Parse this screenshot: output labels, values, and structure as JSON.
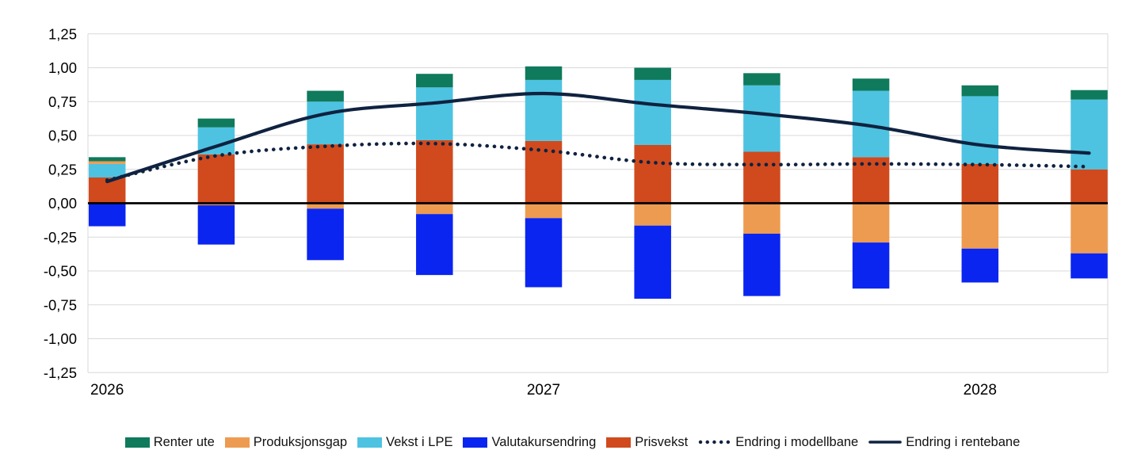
{
  "chart_data": {
    "type": "bar",
    "subtype": "stacked-bars-with-lines",
    "title": "",
    "num_categories": 10,
    "x_axis": {
      "tick_labels": [
        {
          "category_index": 0,
          "text": "2026"
        },
        {
          "category_index": 4,
          "text": "2027"
        },
        {
          "category_index": 8,
          "text": "2028"
        }
      ]
    },
    "y_axis": {
      "min": -1.25,
      "max": 1.25,
      "step": 0.25,
      "tick_labels": [
        "1,25",
        "1,00",
        "0,75",
        "0,50",
        "0,25",
        "0,00",
        "-0,25",
        "-0,50",
        "-0,75",
        "-1,00",
        "-1,25"
      ],
      "grid": true,
      "gridline_color": "#D9D9D9",
      "zero_line_color": "#000000"
    },
    "bar_series": [
      {
        "id": "renter_ute",
        "name": "Renter ute",
        "color": "#0F7A5C",
        "values": [
          0.03,
          0.065,
          0.08,
          0.1,
          0.1,
          0.09,
          0.09,
          0.09,
          0.08,
          0.07
        ]
      },
      {
        "id": "produksjonsgap",
        "name": "Produksjonsgap",
        "color": "#ED9B51",
        "values": [
          0.02,
          -0.015,
          -0.04,
          -0.08,
          -0.11,
          -0.165,
          -0.225,
          -0.29,
          -0.335,
          -0.37
        ]
      },
      {
        "id": "vekst_lpe",
        "name": "Vekst i LPE",
        "color": "#4DC3E1",
        "values": [
          0.1,
          0.2,
          0.315,
          0.39,
          0.45,
          0.48,
          0.49,
          0.49,
          0.5,
          0.515
        ]
      },
      {
        "id": "valutakursendring",
        "name": "Valutakursendring",
        "color": "#0A25F0",
        "values": [
          -0.17,
          -0.29,
          -0.38,
          -0.45,
          -0.51,
          -0.54,
          -0.46,
          -0.34,
          -0.25,
          -0.185
        ]
      },
      {
        "id": "prisvekst",
        "name": "Prisvekst",
        "color": "#D04A1E",
        "values": [
          0.19,
          0.36,
          0.435,
          0.465,
          0.46,
          0.43,
          0.38,
          0.34,
          0.29,
          0.25
        ]
      }
    ],
    "stack_order": [
      "prisvekst",
      "vekst_lpe",
      "produksjonsgap",
      "renter_ute",
      "valutakursendring"
    ],
    "line_series": [
      {
        "id": "modellbane",
        "name": "Endring i modellbane",
        "style": "dotted",
        "color": "#0F2240",
        "values": [
          0.17,
          0.35,
          0.42,
          0.44,
          0.39,
          0.3,
          0.285,
          0.29,
          0.285,
          0.27
        ]
      },
      {
        "id": "rentebane",
        "name": "Endring i rentebane",
        "style": "solid",
        "color": "#0F2240",
        "values": [
          0.16,
          0.42,
          0.66,
          0.74,
          0.81,
          0.73,
          0.66,
          0.57,
          0.43,
          0.37
        ]
      }
    ],
    "legend_order": [
      "renter_ute",
      "produksjonsgap",
      "vekst_lpe",
      "valutakursendring",
      "prisvekst",
      "modellbane",
      "rentebane"
    ],
    "legend_position": "bottom"
  }
}
